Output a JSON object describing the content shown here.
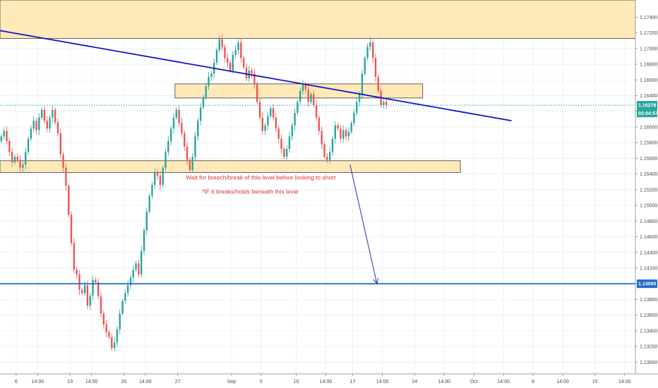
{
  "chart_data": {
    "type": "candlestick",
    "y_axis": {
      "ticks": [
        "1.17400",
        "1.17200",
        "1.17000",
        "1.16800",
        "1.16600",
        "1.16400",
        "1.16200",
        "1.16000",
        "1.15800",
        "1.15600",
        "1.15400",
        "1.15200",
        "1.15000",
        "1.14800",
        "1.14600",
        "1.14400",
        "1.14200",
        "1.14000",
        "1.13800",
        "1.13600",
        "1.13400",
        "1.13200",
        "1.13000"
      ],
      "range": [
        1.1285,
        1.1762
      ],
      "position": "right"
    },
    "x_axis": {
      "ticks": [
        {
          "label": "6",
          "t": 6
        },
        {
          "label": "14:00",
          "t": 14
        },
        {
          "label": "13",
          "t": 26
        },
        {
          "label": "14:00",
          "t": 34
        },
        {
          "label": "20",
          "t": 46
        },
        {
          "label": "14:00",
          "t": 54
        },
        {
          "label": "27",
          "t": 66
        },
        {
          "label": "Sep",
          "t": 86
        },
        {
          "label": "5",
          "t": 97
        },
        {
          "label": "10",
          "t": 110
        },
        {
          "label": "14:00",
          "t": 121
        },
        {
          "label": "17",
          "t": 131
        },
        {
          "label": "14:00",
          "t": 142
        },
        {
          "label": "24",
          "t": 154
        },
        {
          "label": "14:00",
          "t": 165
        },
        {
          "label": "Oct",
          "t": 176
        },
        {
          "label": "14:00",
          "t": 187
        },
        {
          "label": "8",
          "t": 198
        },
        {
          "label": "14:00",
          "t": 209
        },
        {
          "label": "15",
          "t": 221
        },
        {
          "label": "14:00",
          "t": 232
        }
      ],
      "range": [
        0,
        236
      ]
    },
    "ohlc_start_t": 0,
    "ohlc_step": 1,
    "closes": [
      1.1588,
      1.1595,
      1.1582,
      1.1568,
      1.1555,
      1.1562,
      1.1558,
      1.1548,
      1.1552,
      1.1568,
      1.1585,
      1.1598,
      1.1608,
      1.1596,
      1.1612,
      1.1622,
      1.1608,
      1.1598,
      1.1612,
      1.1622,
      1.1606,
      1.1592,
      1.1565,
      1.1548,
      1.1525,
      1.1488,
      1.1452,
      1.1418,
      1.1412,
      1.1392,
      1.1388,
      1.1398,
      1.1372,
      1.1385,
      1.1405,
      1.1402,
      1.1384,
      1.1362,
      1.1348,
      1.1338,
      1.1332,
      1.1318,
      1.1325,
      1.1342,
      1.1362,
      1.1378,
      1.1388,
      1.1398,
      1.1408,
      1.1418,
      1.1426,
      1.1412,
      1.1442,
      1.1468,
      1.1492,
      1.1512,
      1.1526,
      1.1542,
      1.1538,
      1.1526,
      1.1548,
      1.1568,
      1.1582,
      1.1598,
      1.1612,
      1.1622,
      1.1605,
      1.1592,
      1.1575,
      1.1558,
      1.1545,
      1.1562,
      1.1588,
      1.1608,
      1.1625,
      1.1638,
      1.1652,
      1.1664,
      1.1668,
      1.1682,
      1.1698,
      1.1712,
      1.1702,
      1.1688,
      1.1682,
      1.1672,
      1.1692,
      1.1698,
      1.1708,
      1.1688,
      1.1676,
      1.1662,
      1.1672,
      1.1668,
      1.1655,
      1.1632,
      1.1612,
      1.1595,
      1.1602,
      1.1614,
      1.1624,
      1.1612,
      1.1598,
      1.1585,
      1.1572,
      1.1562,
      1.1572,
      1.1588,
      1.1602,
      1.1618,
      1.1632,
      1.1646,
      1.1654,
      1.1648,
      1.1632,
      1.1642,
      1.1628,
      1.1612,
      1.1595,
      1.1578,
      1.1562,
      1.1558,
      1.1568,
      1.1585,
      1.1602,
      1.1598,
      1.1585,
      1.1596,
      1.1588,
      1.1594,
      1.1605,
      1.1618,
      1.1632,
      1.1642,
      1.1668,
      1.1688,
      1.1702,
      1.1708,
      1.1688,
      1.1664,
      1.1646,
      1.1628,
      1.1632,
      1.1628
    ],
    "zones": [
      {
        "y_top": 1.1762,
        "y_bottom": 1.1713,
        "t_end": 236
      },
      {
        "y_top": 1.1655,
        "y_bottom": 1.1637,
        "t_start": 65,
        "t_end": 157
      },
      {
        "y_top": 1.1557,
        "y_bottom": 1.1542,
        "t_start": 0,
        "t_end": 171
      }
    ],
    "trendline": {
      "t1": 0,
      "y1": 1.1723,
      "t2": 190,
      "y2": 1.1608
    },
    "support_line": {
      "y": 1.14
    },
    "projection_arrow": {
      "t1": 130,
      "y1": 1.1552,
      "t2": 140,
      "y2": 1.14
    },
    "annotations": [
      {
        "text": "Wait for breach/break of this level before looking to short",
        "t": 69,
        "y": 1.1533
      },
      {
        "text": "*IF it breaks/holds beneath this level",
        "t": 75,
        "y": 1.1515
      }
    ],
    "current_price": {
      "value": "1.16278",
      "countdown": "03:04:57",
      "y": 1.16278
    },
    "level_tag": {
      "value": "1.14000",
      "y": 1.14
    },
    "grid": true,
    "colors": {
      "up": "#26a69a",
      "down": "#ef5350",
      "zone_fill": "#ffe9b8",
      "zone_stroke": "#3a3a3a",
      "trendline": "#1414c8",
      "support_line": "#1e6ac8",
      "arrow": "#2233bb",
      "note_text": "#e03131",
      "grid": "#eef1f6",
      "current_price_tag": "#26a69a",
      "level_tag": "#1e6ac8",
      "current_price_dots": "#26a69a"
    }
  }
}
